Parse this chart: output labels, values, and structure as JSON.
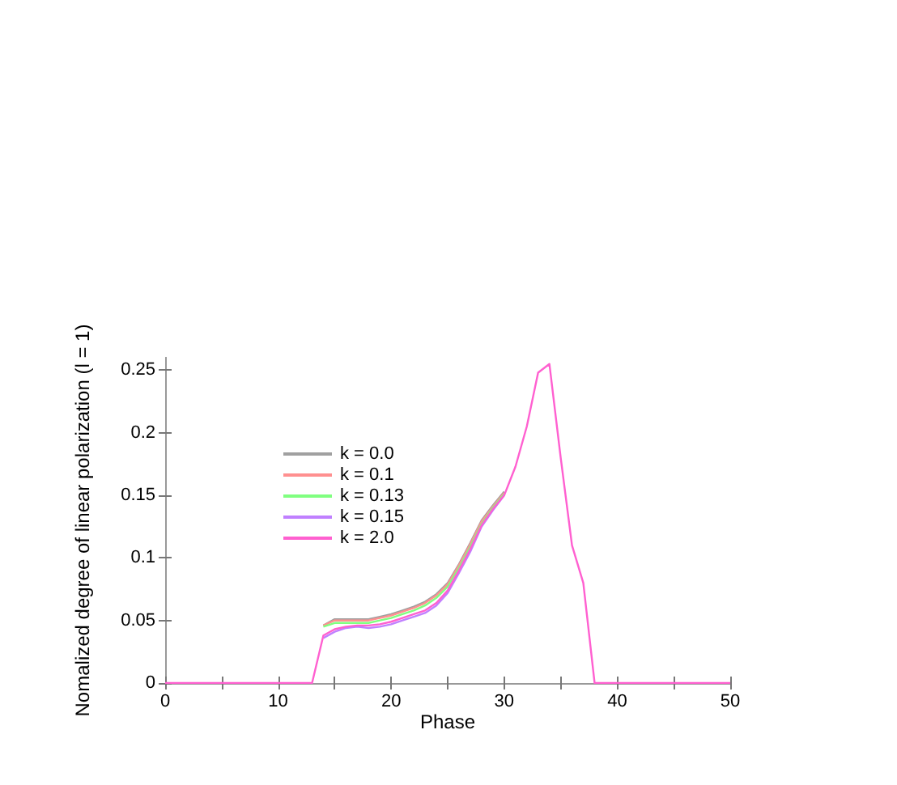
{
  "chart_data": {
    "type": "line",
    "xlabel": "Phase",
    "ylabel": "Nomalized degree of linear polarization (l = 1)",
    "x": [
      0,
      1,
      2,
      3,
      4,
      5,
      6,
      7,
      8,
      9,
      10,
      11,
      12,
      13,
      14,
      15,
      16,
      17,
      18,
      19,
      20,
      21,
      22,
      23,
      24,
      25,
      26,
      27,
      28,
      29,
      30,
      31,
      32,
      33,
      34,
      35,
      36,
      37,
      38,
      39,
      40,
      41,
      42,
      43,
      44,
      45,
      46,
      47,
      48,
      49,
      50
    ],
    "series": [
      {
        "name": "k = 0.0",
        "color": "#a0a0a0",
        "values": [
          null,
          null,
          null,
          null,
          null,
          null,
          null,
          null,
          null,
          null,
          null,
          null,
          null,
          null,
          0.046,
          0.051,
          0.051,
          0.051,
          0.051,
          0.053,
          0.055,
          0.058,
          0.061,
          0.065,
          0.071,
          0.08,
          0.095,
          0.112,
          0.13,
          0.142,
          0.153,
          null,
          null,
          null,
          null,
          null,
          null,
          null,
          null,
          null,
          null,
          null,
          null,
          null,
          null,
          null,
          null,
          null,
          null,
          null,
          null
        ]
      },
      {
        "name": "k = 0.1",
        "color": "#ff9090",
        "values": [
          null,
          null,
          null,
          null,
          null,
          null,
          null,
          null,
          null,
          null,
          null,
          null,
          null,
          null,
          0.046,
          0.05,
          0.05,
          0.05,
          0.05,
          0.052,
          0.054,
          0.057,
          0.06,
          0.064,
          0.07,
          0.079,
          0.094,
          0.111,
          0.129,
          0.141,
          0.152,
          null,
          null,
          null,
          null,
          null,
          null,
          null,
          null,
          null,
          null,
          null,
          null,
          null,
          null,
          null,
          null,
          null,
          null,
          null,
          null
        ]
      },
      {
        "name": "k = 0.13",
        "color": "#80ff80",
        "values": [
          null,
          null,
          null,
          null,
          null,
          null,
          null,
          null,
          null,
          null,
          null,
          null,
          null,
          null,
          0.045,
          0.048,
          0.048,
          0.048,
          0.048,
          0.05,
          0.052,
          0.055,
          0.058,
          0.062,
          0.068,
          0.077,
          0.092,
          0.109,
          0.127,
          0.14,
          0.151,
          null,
          null,
          null,
          null,
          null,
          null,
          null,
          null,
          null,
          null,
          null,
          null,
          null,
          null,
          null,
          null,
          null,
          null,
          null,
          null
        ]
      },
      {
        "name": "k = 0.15",
        "color": "#c080ff",
        "values": [
          null,
          null,
          null,
          null,
          null,
          null,
          null,
          null,
          null,
          null,
          null,
          null,
          null,
          null,
          0.036,
          0.041,
          0.044,
          0.045,
          0.044,
          0.045,
          0.047,
          0.05,
          0.053,
          0.056,
          0.062,
          0.072,
          0.088,
          0.105,
          0.125,
          0.138,
          0.15,
          null,
          null,
          null,
          null,
          null,
          null,
          null,
          null,
          null,
          null,
          null,
          null,
          null,
          null,
          null,
          null,
          null,
          null,
          null,
          null
        ]
      },
      {
        "name": "k = 2.0",
        "color": "#ff60d0",
        "values": [
          0,
          0,
          0,
          0,
          0,
          0,
          0,
          0,
          0,
          0,
          0,
          0,
          0,
          0,
          0.038,
          0.043,
          0.045,
          0.046,
          0.046,
          0.047,
          0.049,
          0.052,
          0.055,
          0.058,
          0.064,
          0.074,
          0.09,
          0.107,
          0.126,
          0.139,
          0.15,
          0.173,
          0.205,
          0.248,
          0.255,
          0.18,
          0.11,
          0.08,
          0,
          0,
          0,
          0,
          0,
          0,
          0,
          0,
          0,
          0,
          0,
          0,
          0
        ]
      }
    ],
    "xlim": [
      0,
      50
    ],
    "xticks": [
      0,
      {
        "value": 5,
        "label": null
      },
      10,
      {
        "value": 15,
        "label": null
      },
      20,
      {
        "value": 25,
        "label": null
      },
      30,
      {
        "value": 35,
        "label": null
      },
      40,
      {
        "value": 45,
        "label": null
      },
      50
    ],
    "ylim": [
      0,
      0.26
    ],
    "yticks": [
      0,
      0.05,
      0.1,
      0.15,
      0.2,
      0.25
    ],
    "grid": false,
    "legend": "top left",
    "marker": "none",
    "line_style": "solid"
  }
}
